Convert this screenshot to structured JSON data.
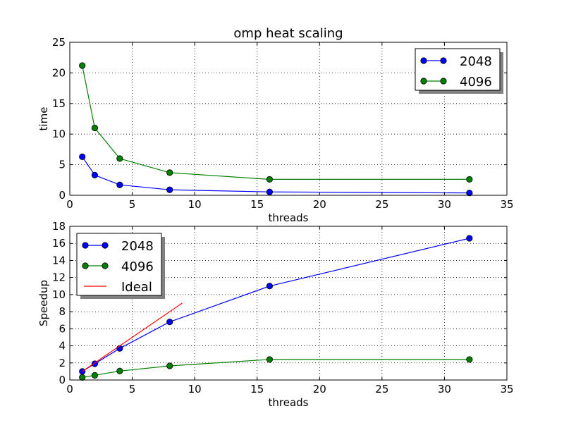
{
  "chart_data": [
    {
      "type": "line",
      "title": "omp heat scaling",
      "xlabel": "threads",
      "ylabel": "time",
      "xlim": [
        0,
        35
      ],
      "ylim": [
        0,
        25
      ],
      "xticks": [
        "0",
        "5",
        "10",
        "15",
        "20",
        "25",
        "30",
        "35"
      ],
      "yticks": [
        "0",
        "5",
        "10",
        "15",
        "20",
        "25"
      ],
      "grid": true,
      "legend_position": "top-right",
      "series": [
        {
          "name": "2048",
          "color": "#0000ff",
          "marker": "circle",
          "x": [
            1,
            2,
            4,
            8,
            16,
            32
          ],
          "y": [
            6.3,
            3.3,
            1.7,
            0.9,
            0.55,
            0.38
          ]
        },
        {
          "name": "4096",
          "color": "#007f00",
          "marker": "circle",
          "x": [
            1,
            2,
            4,
            8,
            16,
            32
          ],
          "y": [
            21.2,
            11.0,
            6.0,
            3.7,
            2.6,
            2.6
          ]
        }
      ]
    },
    {
      "type": "line",
      "title": "",
      "xlabel": "threads",
      "ylabel": "Speedup",
      "xlim": [
        0,
        35
      ],
      "ylim": [
        0,
        18
      ],
      "xticks": [
        "0",
        "5",
        "10",
        "15",
        "20",
        "25",
        "30",
        "35"
      ],
      "yticks": [
        "0",
        "2",
        "4",
        "6",
        "8",
        "10",
        "12",
        "14",
        "16",
        "18"
      ],
      "grid": true,
      "legend_position": "top-left",
      "series": [
        {
          "name": "2048",
          "color": "#0000ff",
          "marker": "circle",
          "x": [
            1,
            2,
            4,
            8,
            16,
            32
          ],
          "y": [
            1.0,
            1.9,
            3.7,
            6.8,
            11.0,
            16.6
          ]
        },
        {
          "name": "4096",
          "color": "#007f00",
          "marker": "circle",
          "x": [
            1,
            2,
            4,
            8,
            16,
            32
          ],
          "y": [
            0.3,
            0.55,
            1.05,
            1.65,
            2.4,
            2.4
          ]
        },
        {
          "name": "Ideal",
          "color": "#ff0000",
          "marker": "none",
          "x": [
            1,
            9
          ],
          "y": [
            1,
            9
          ]
        }
      ]
    }
  ]
}
